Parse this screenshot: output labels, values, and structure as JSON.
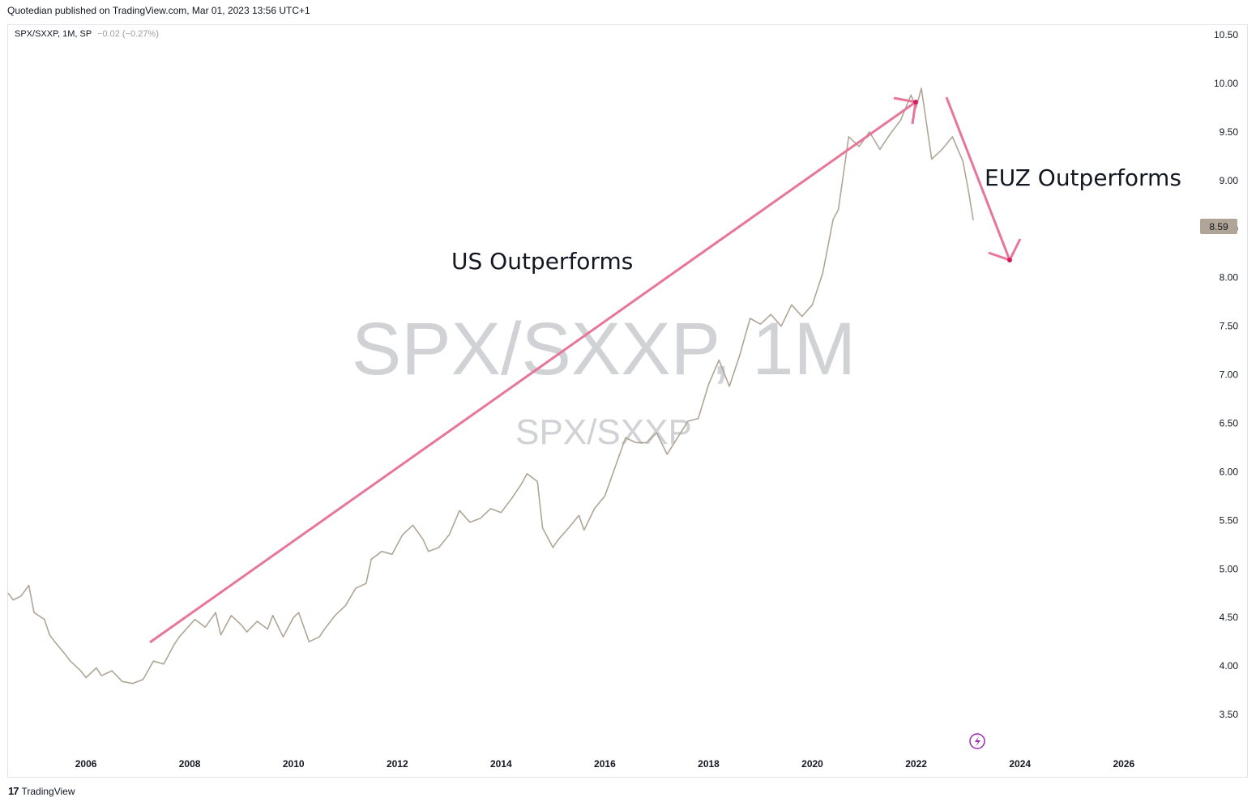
{
  "header": {
    "published": "Quotedian published on TradingView.com, Mar 01, 2023 13:56 UTC+1"
  },
  "legend": {
    "symbol": "SPX/SXXP, 1M, SP",
    "change": "−0.02 (−0.27%)"
  },
  "watermark": {
    "main": "SPX/SXXP, 1M",
    "sub": "SPX/SXXP"
  },
  "footer": {
    "brand": "TradingView"
  },
  "colors": {
    "line": "#b0a596",
    "arrow": "#e8769a",
    "price_tag": "#b0a596",
    "watermark": "#d1d2d6",
    "live_icon": "#9c27b0"
  },
  "chart_data": {
    "type": "line",
    "title": "SPX/SXXP, 1M",
    "xlabel": "",
    "ylabel": "",
    "x_ticks": [
      "2006",
      "2008",
      "2010",
      "2012",
      "2014",
      "2016",
      "2018",
      "2020",
      "2022",
      "2024",
      "2026"
    ],
    "y_ticks": [
      "3.50",
      "4.00",
      "4.50",
      "5.00",
      "5.50",
      "6.00",
      "6.50",
      "7.00",
      "7.50",
      "8.00",
      "8.50",
      "9.00",
      "9.50",
      "10.00",
      "10.50"
    ],
    "xlim": [
      2004.5,
      2027.3
    ],
    "ylim": [
      3.1,
      10.6
    ],
    "last_value_label": "8.59",
    "series": [
      {
        "x": [
          2004.5,
          2004.6,
          2004.75,
          2004.9,
          2005.0,
          2005.2,
          2005.3,
          2005.4,
          2005.6,
          2005.7,
          2005.9,
          2006.0,
          2006.2,
          2006.3,
          2006.5,
          2006.7,
          2006.9,
          2007.1,
          2007.3,
          2007.5,
          2007.7,
          2007.8,
          2008.0,
          2008.1,
          2008.3,
          2008.5,
          2008.6,
          2008.8,
          2009.0,
          2009.1,
          2009.3,
          2009.5,
          2009.6,
          2009.8,
          2010.0,
          2010.1,
          2010.3,
          2010.5,
          2010.6,
          2010.8,
          2011.0,
          2011.2,
          2011.4,
          2011.5,
          2011.7,
          2011.9,
          2012.1,
          2012.3,
          2012.5,
          2012.6,
          2012.8,
          2013.0,
          2013.2,
          2013.4,
          2013.6,
          2013.8,
          2014.0,
          2014.2,
          2014.4,
          2014.5,
          2014.7,
          2014.8,
          2015.0,
          2015.1,
          2015.3,
          2015.5,
          2015.6,
          2015.8,
          2016.0,
          2016.2,
          2016.4,
          2016.6,
          2016.8,
          2017.0,
          2017.2,
          2017.4,
          2017.6,
          2017.8,
          2018.0,
          2018.2,
          2018.4,
          2018.6,
          2018.8,
          2019.0,
          2019.2,
          2019.4,
          2019.6,
          2019.8,
          2020.0,
          2020.2,
          2020.4,
          2020.5,
          2020.7,
          2020.9,
          2021.1,
          2021.3,
          2021.5,
          2021.7,
          2021.9,
          2022.0,
          2022.1,
          2022.3,
          2022.5,
          2022.7,
          2022.9,
          2023.0,
          2023.1
        ],
        "values": [
          4.75,
          4.68,
          4.72,
          4.83,
          4.55,
          4.48,
          4.32,
          4.25,
          4.12,
          4.05,
          3.95,
          3.88,
          3.98,
          3.9,
          3.95,
          3.84,
          3.82,
          3.86,
          4.05,
          4.02,
          4.22,
          4.3,
          4.42,
          4.48,
          4.4,
          4.55,
          4.32,
          4.52,
          4.42,
          4.35,
          4.46,
          4.38,
          4.52,
          4.3,
          4.5,
          4.55,
          4.25,
          4.3,
          4.38,
          4.52,
          4.62,
          4.8,
          4.85,
          5.1,
          5.18,
          5.15,
          5.35,
          5.45,
          5.3,
          5.18,
          5.22,
          5.35,
          5.6,
          5.48,
          5.52,
          5.62,
          5.58,
          5.72,
          5.88,
          5.98,
          5.9,
          5.42,
          5.22,
          5.3,
          5.42,
          5.55,
          5.4,
          5.62,
          5.75,
          6.05,
          6.35,
          6.3,
          6.3,
          6.4,
          6.18,
          6.35,
          6.52,
          6.55,
          6.9,
          7.15,
          6.88,
          7.2,
          7.58,
          7.52,
          7.62,
          7.5,
          7.72,
          7.6,
          7.72,
          8.05,
          8.6,
          8.7,
          9.45,
          9.35,
          9.5,
          9.32,
          9.48,
          9.62,
          9.88,
          9.75,
          9.95,
          9.22,
          9.32,
          9.45,
          9.2,
          8.92,
          8.59
        ]
      }
    ],
    "annotations": [
      {
        "text": "US Outperforms"
      },
      {
        "text": "EUZ Outperforms"
      }
    ]
  }
}
